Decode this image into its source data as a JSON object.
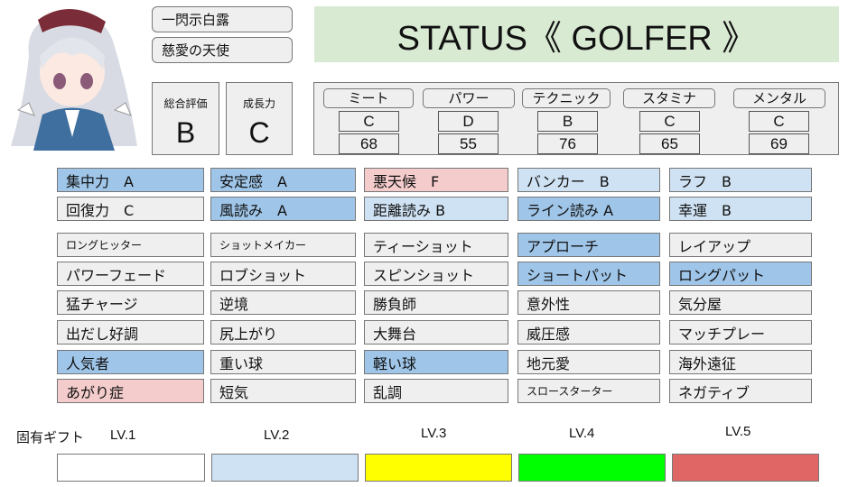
{
  "character": {
    "name": "一閃示白露",
    "title": "慈愛の天使"
  },
  "header": {
    "title": "STATUS《 GOLFER 》"
  },
  "overall": {
    "label": "総合評価",
    "value": "B"
  },
  "growth": {
    "label": "成長力",
    "value": "C"
  },
  "stats": [
    {
      "label": "ミート",
      "grade": "C",
      "value": "68"
    },
    {
      "label": "パワー",
      "grade": "D",
      "value": "55"
    },
    {
      "label": "テクニック",
      "grade": "B",
      "value": "76"
    },
    {
      "label": "スタミナ",
      "grade": "C",
      "value": "65"
    },
    {
      "label": "メンタル",
      "grade": "C",
      "value": "69"
    }
  ],
  "colors": {
    "strong": "#9fc5e8",
    "light": "#cfe2f3",
    "bad": "#f4cccc",
    "none": "#efefef",
    "lv1": "#ffffff",
    "lv2": "#cfe2f3",
    "lv3": "#ffff00",
    "lv4": "#00ff00",
    "lv5": "#e06666"
  },
  "abilities": [
    [
      {
        "t": "集中力　A",
        "c": "strong"
      },
      {
        "t": "安定感　A",
        "c": "strong"
      },
      {
        "t": "悪天候　F",
        "c": "bad"
      },
      {
        "t": "バンカー　B",
        "c": "light"
      },
      {
        "t": "ラフ　B",
        "c": "light"
      }
    ],
    [
      {
        "t": "回復力　C",
        "c": "none"
      },
      {
        "t": "風読み　A",
        "c": "strong"
      },
      {
        "t": "距離読み B",
        "c": "light"
      },
      {
        "t": "ライン読み A",
        "c": "strong"
      },
      {
        "t": "幸運　B",
        "c": "light"
      }
    ]
  ],
  "skills": [
    [
      {
        "t": "ロングヒッター",
        "c": "none",
        "s": 1
      },
      {
        "t": "ショットメイカー",
        "c": "none",
        "s": 1
      },
      {
        "t": "ティーショット",
        "c": "none"
      },
      {
        "t": "アプローチ",
        "c": "strong"
      },
      {
        "t": "レイアップ",
        "c": "none"
      }
    ],
    [
      {
        "t": "パワーフェード",
        "c": "none"
      },
      {
        "t": "ロブショット",
        "c": "none"
      },
      {
        "t": "スピンショット",
        "c": "none"
      },
      {
        "t": "ショートパット",
        "c": "strong"
      },
      {
        "t": "ロングパット",
        "c": "strong"
      }
    ],
    [
      {
        "t": "猛チャージ",
        "c": "none"
      },
      {
        "t": "逆境",
        "c": "none"
      },
      {
        "t": "勝負師",
        "c": "none"
      },
      {
        "t": "意外性",
        "c": "none"
      },
      {
        "t": "気分屋",
        "c": "none"
      }
    ],
    [
      {
        "t": "出だし好調",
        "c": "none"
      },
      {
        "t": "尻上がり",
        "c": "none"
      },
      {
        "t": "大舞台",
        "c": "none"
      },
      {
        "t": "威圧感",
        "c": "none"
      },
      {
        "t": "マッチプレー",
        "c": "none"
      }
    ],
    [
      {
        "t": "人気者",
        "c": "strong"
      },
      {
        "t": "重い球",
        "c": "none"
      },
      {
        "t": "軽い球",
        "c": "strong"
      },
      {
        "t": "地元愛",
        "c": "none"
      },
      {
        "t": "海外遠征",
        "c": "none"
      }
    ],
    [
      {
        "t": "あがり症",
        "c": "bad"
      },
      {
        "t": "短気",
        "c": "none"
      },
      {
        "t": "乱調",
        "c": "none"
      },
      {
        "t": "スロースターター",
        "c": "none",
        "s": 1
      },
      {
        "t": "ネガティブ",
        "c": "none"
      }
    ]
  ],
  "gift": {
    "label": "固有ギフト",
    "levels": [
      "LV.1",
      "LV.2",
      "LV.3",
      "LV.4",
      "LV.5"
    ]
  }
}
